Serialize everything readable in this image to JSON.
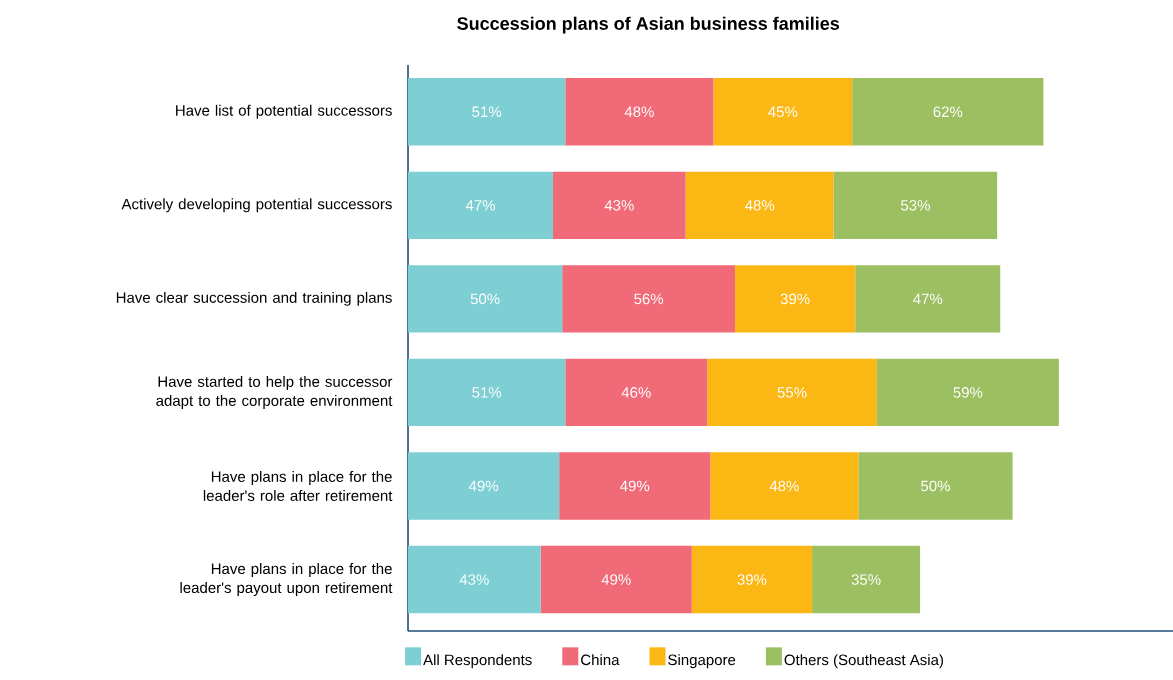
{
  "chart_data": {
    "type": "bar",
    "orientation": "horizontal",
    "stacked": true,
    "title": "Succession plans of Asian business families",
    "categories": [
      "Have list of potential successors",
      "Actively developing potential successors",
      "Have clear succession and training plans",
      "Have started to help the successor adapt to the corporate environment",
      "Have plans in place for the leader's role after retirement",
      "Have plans in place for the leader's payout upon retirement"
    ],
    "series": [
      {
        "name": "All Respondents",
        "color": "#7ecfd4",
        "values": [
          51,
          47,
          50,
          51,
          49,
          43
        ],
        "value_labels": [
          "51%",
          "47%",
          "50%",
          "51%",
          "49%",
          "43%"
        ]
      },
      {
        "name": "China",
        "color": "#f06a78",
        "values": [
          48,
          43,
          56,
          46,
          49,
          49
        ],
        "value_labels": [
          "48%",
          "43%",
          "56%",
          "46%",
          "49%",
          "49%"
        ]
      },
      {
        "name": "Singapore",
        "color": "#fbb714",
        "values": [
          45,
          48,
          39,
          55,
          48,
          39
        ],
        "value_labels": [
          "45%",
          "48%",
          "39%",
          "55%",
          "48%",
          "39%"
        ]
      },
      {
        "name": "Others (Southeast Asia)",
        "color": "#9cbf62",
        "values": [
          62,
          53,
          47,
          59,
          50,
          35
        ],
        "value_labels": [
          "62%",
          "53%",
          "47%",
          "59%",
          "50%",
          "35%"
        ]
      }
    ],
    "xlim": [
      0,
      248
    ],
    "tick_labels": "y",
    "legend": "bottom",
    "grid": false
  }
}
